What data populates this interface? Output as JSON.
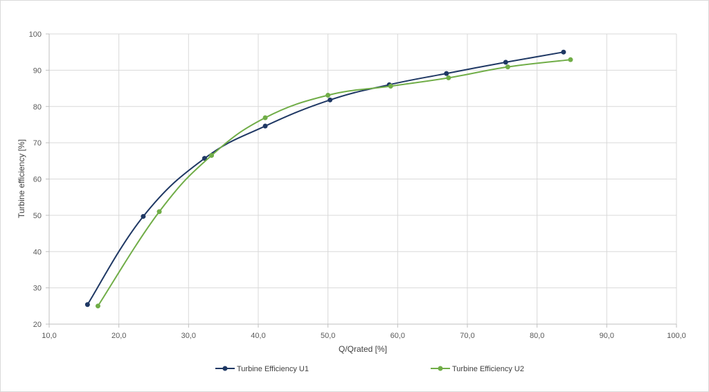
{
  "chart_data": {
    "type": "line",
    "title": "",
    "xlabel": "Q/Qrated [%]",
    "ylabel": "Turbine efficiency [%]",
    "xlim": [
      10,
      100
    ],
    "ylim": [
      20,
      100
    ],
    "x_ticks": [
      "10,0",
      "20,0",
      "30,0",
      "40,0",
      "50,0",
      "60,0",
      "70,0",
      "80,0",
      "90,0",
      "100,0"
    ],
    "y_ticks": [
      "20",
      "30",
      "40",
      "50",
      "60",
      "70",
      "80",
      "90",
      "100"
    ],
    "grid": true,
    "smooth": true,
    "legend_position": "bottom",
    "series": [
      {
        "name": "Turbine Efficiency U1",
        "color": "#1f3864",
        "points": [
          {
            "x": 15.5,
            "y": 25.4
          },
          {
            "x": 23.5,
            "y": 49.7
          },
          {
            "x": 32.3,
            "y": 65.7
          },
          {
            "x": 41.0,
            "y": 74.6
          },
          {
            "x": 50.3,
            "y": 81.8
          },
          {
            "x": 58.8,
            "y": 86.0
          },
          {
            "x": 67.0,
            "y": 89.1
          },
          {
            "x": 75.5,
            "y": 92.2
          },
          {
            "x": 83.8,
            "y": 95.0
          }
        ]
      },
      {
        "name": "Turbine Efficiency U2",
        "color": "#70ad47",
        "points": [
          {
            "x": 17.0,
            "y": 25.0
          },
          {
            "x": 25.8,
            "y": 51.0
          },
          {
            "x": 33.3,
            "y": 66.5
          },
          {
            "x": 41.0,
            "y": 76.9
          },
          {
            "x": 50.0,
            "y": 83.1
          },
          {
            "x": 59.0,
            "y": 85.6
          },
          {
            "x": 67.3,
            "y": 87.9
          },
          {
            "x": 75.8,
            "y": 90.9
          },
          {
            "x": 84.8,
            "y": 92.9
          }
        ]
      }
    ]
  }
}
